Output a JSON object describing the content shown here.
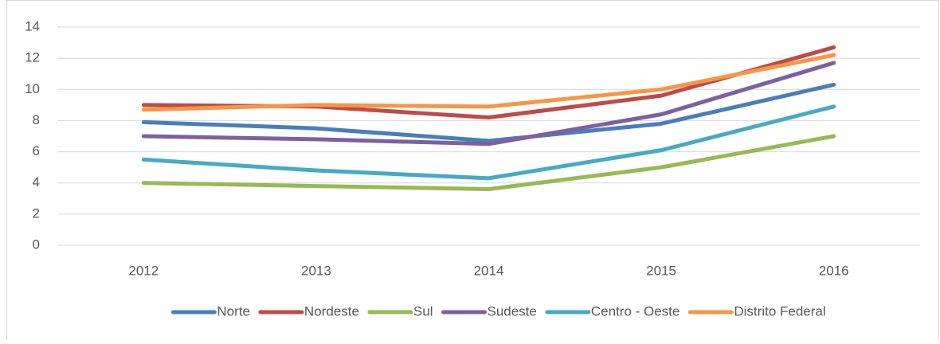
{
  "chart_data": {
    "type": "line",
    "categories": [
      "2012",
      "2013",
      "2014",
      "2015",
      "2016"
    ],
    "series": [
      {
        "name": "Norte",
        "color": "#4a7ebb",
        "values": [
          7.9,
          7.5,
          6.7,
          7.8,
          10.3
        ]
      },
      {
        "name": "Nordeste",
        "color": "#be4b48",
        "values": [
          9.0,
          8.9,
          8.2,
          9.6,
          12.7
        ]
      },
      {
        "name": "Sul",
        "color": "#98b954",
        "values": [
          4.0,
          3.8,
          3.6,
          5.0,
          7.0
        ]
      },
      {
        "name": "Sudeste",
        "color": "#7d60a0",
        "values": [
          7.0,
          6.8,
          6.5,
          8.4,
          11.7
        ]
      },
      {
        "name": "Centro - Oeste",
        "color": "#46aac5",
        "values": [
          5.5,
          4.8,
          4.3,
          6.1,
          8.9
        ]
      },
      {
        "name": "Distrito Federal",
        "color": "#f79646",
        "values": [
          8.7,
          9.0,
          8.9,
          10.0,
          12.2
        ]
      }
    ],
    "ylim": [
      0,
      14
    ],
    "yticks": [
      0,
      2,
      4,
      6,
      8,
      10,
      12,
      14
    ],
    "grid": true,
    "legend": "bottom"
  }
}
